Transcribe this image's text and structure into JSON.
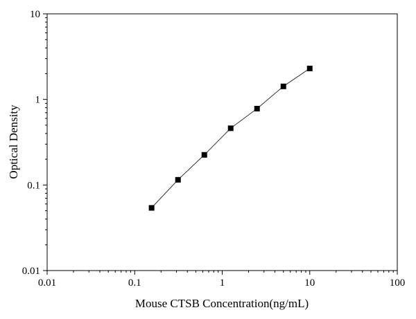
{
  "chart_data": {
    "type": "scatter",
    "title": "",
    "xlabel": "Mouse CTSB Concentration(ng/mL)",
    "ylabel": "Optical Density",
    "x_scale": "log",
    "y_scale": "log",
    "xlim": [
      0.01,
      100
    ],
    "ylim": [
      0.01,
      10
    ],
    "x_ticks": [
      0.01,
      0.1,
      1,
      10,
      100
    ],
    "y_ticks": [
      0.01,
      0.1,
      1,
      10
    ],
    "x_tick_labels": [
      "0.01",
      "0.1",
      "1",
      "10",
      "100"
    ],
    "y_tick_labels": [
      "0.01",
      "0.1",
      "1",
      "10"
    ],
    "grid": false,
    "legend": false,
    "series": [
      {
        "marker": "square",
        "line": "fitted-curve",
        "color": "#000000",
        "x": [
          0.156,
          0.3125,
          0.625,
          1.25,
          2.5,
          5,
          10
        ],
        "y": [
          0.054,
          0.115,
          0.225,
          0.46,
          0.78,
          1.42,
          2.3
        ]
      }
    ]
  }
}
